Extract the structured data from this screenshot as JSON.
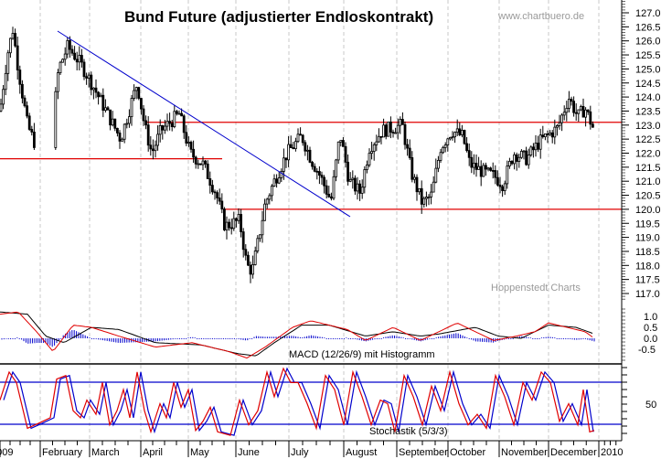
{
  "chart_data": {
    "type": "candlestick",
    "title": "Bund Future (adjustierter Endloskontrakt)",
    "watermark_top": "www.chartbuero.de",
    "watermark_bottom": "Hoppenstedt Charts",
    "x_tick_labels": [
      "2009",
      "February",
      "March",
      "April",
      "May",
      "June",
      "July",
      "August",
      "September",
      "October",
      "November",
      "December",
      "2010"
    ],
    "price_axis": {
      "ylim": [
        117.0,
        127.0
      ],
      "tick_labels": [
        "127.0",
        "126.5",
        "126.0",
        "125.5",
        "125.0",
        "124.5",
        "124.0",
        "123.5",
        "123.0",
        "122.5",
        "122.0",
        "121.5",
        "121.0",
        "120.5",
        "120.0",
        "119.5",
        "119.0",
        "118.5",
        "118.0",
        "117.5",
        "117.0"
      ]
    },
    "horizontal_lines": [
      {
        "name": "resistance",
        "value": 123.1,
        "color": "#e00000",
        "from": "April",
        "to": "end"
      },
      {
        "name": "support-early",
        "value": 121.8,
        "color": "#e00000",
        "from": "start",
        "to": "May"
      },
      {
        "name": "support",
        "value": 120.0,
        "color": "#e00000",
        "from": "May",
        "to": "end"
      }
    ],
    "trendline": {
      "color": "#0000cc",
      "start": {
        "month": "late January",
        "value": 126.4
      },
      "end": {
        "month": "August",
        "value": 119.8
      }
    },
    "price_series_approx": [
      {
        "month": "January",
        "open": 124.0,
        "high": 126.5,
        "low": 121.7,
        "close": 122.0
      },
      {
        "month": "February",
        "open": 122.0,
        "high": 126.1,
        "low": 121.9,
        "close": 125.4
      },
      {
        "month": "March",
        "open": 125.4,
        "high": 125.8,
        "low": 122.2,
        "close": 123.5
      },
      {
        "month": "April",
        "open": 123.5,
        "high": 124.7,
        "low": 121.7,
        "close": 122.0
      },
      {
        "month": "May",
        "open": 122.0,
        "high": 123.4,
        "low": 119.2,
        "close": 119.6
      },
      {
        "month": "June",
        "open": 119.6,
        "high": 121.2,
        "low": 117.6,
        "close": 120.9
      },
      {
        "month": "July",
        "open": 120.9,
        "high": 122.6,
        "low": 120.2,
        "close": 121.6
      },
      {
        "month": "August",
        "open": 121.6,
        "high": 123.0,
        "low": 120.0,
        "close": 122.8
      },
      {
        "month": "September",
        "open": 122.8,
        "high": 123.0,
        "low": 119.9,
        "close": 122.0
      },
      {
        "month": "October",
        "open": 122.0,
        "high": 123.0,
        "low": 120.7,
        "close": 121.5
      },
      {
        "month": "November",
        "open": 121.5,
        "high": 124.1,
        "low": 121.0,
        "close": 123.2
      },
      {
        "month": "December",
        "open": 123.2,
        "high": 123.7,
        "low": 121.1,
        "close": 121.4
      }
    ],
    "macd_panel": {
      "label": "MACD (12/26/9) mit Histogramm",
      "tick_labels": [
        "1.0",
        "0.5",
        "0.0",
        "-0.5"
      ],
      "series": [
        {
          "name": "MACD",
          "color": "#e00000"
        },
        {
          "name": "Signal",
          "color": "#000000"
        },
        {
          "name": "Histogram",
          "color": "#0000cc"
        }
      ]
    },
    "stoch_panel": {
      "label": "Stochastik (5/3/3)",
      "tick_labels": [
        "50"
      ],
      "levels": [
        80,
        20
      ],
      "series": [
        {
          "name": "%K",
          "color": "#e00000"
        },
        {
          "name": "%D",
          "color": "#0000cc"
        }
      ]
    },
    "grid": "vertical dashed month separators"
  }
}
